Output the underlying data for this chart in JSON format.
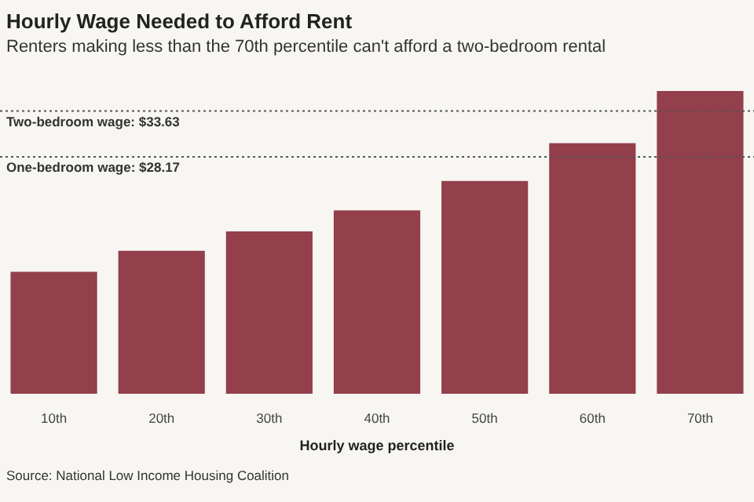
{
  "chart_data": {
    "type": "bar",
    "title": "Hourly Wage Needed to Afford Rent",
    "subtitle": "Renters making less than the 70th percentile can't afford a two-bedroom rental",
    "xlabel": "Hourly wage percentile",
    "categories": [
      "10th",
      "20th",
      "30th",
      "40th",
      "50th",
      "60th",
      "70th"
    ],
    "values": [
      14.5,
      17.0,
      19.3,
      21.8,
      25.3,
      29.8,
      36.0
    ],
    "color": "#933f4c",
    "ylim": [
      0,
      36
    ],
    "tick_labels": "x",
    "grid": false,
    "legend": false,
    "ref_lines": [
      {
        "axis": "y",
        "value": 33.63,
        "label": "Two-bedroom wage: $33.63",
        "color": "#555555",
        "line_style": "dotted"
      },
      {
        "axis": "y",
        "value": 28.17,
        "label": "One-bedroom wage: $28.17",
        "color": "#555555",
        "line_style": "dotted"
      }
    ],
    "annotations": [
      "Source: National Low Income Housing Coalition"
    ]
  }
}
